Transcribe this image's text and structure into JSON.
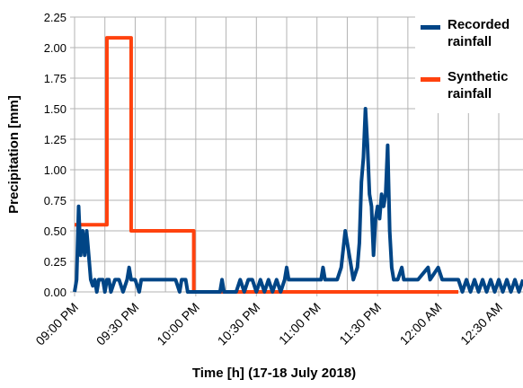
{
  "chart_data": {
    "type": "line",
    "y_label": "Precipitation [mm]",
    "x_label": "Time [h] (17-18 July 2018)",
    "xlim": [
      0,
      222
    ],
    "ylim": [
      0,
      2.25
    ],
    "xticks": [
      {
        "value": 0,
        "label": "09:00 PM"
      },
      {
        "value": 30,
        "label": "09:30 PM"
      },
      {
        "value": 60,
        "label": "10:00 PM"
      },
      {
        "value": 90,
        "label": "10:30 PM"
      },
      {
        "value": 120,
        "label": "11:00 PM"
      },
      {
        "value": 150,
        "label": "11:30 PM"
      },
      {
        "value": 180,
        "label": "12:00 AM"
      },
      {
        "value": 210,
        "label": "12:30 AM"
      }
    ],
    "yticks": [
      {
        "value": 0,
        "label": "0.00"
      },
      {
        "value": 0.25,
        "label": "0.25"
      },
      {
        "value": 0.5,
        "label": "0.50"
      },
      {
        "value": 0.75,
        "label": "0.75"
      },
      {
        "value": 1,
        "label": "1.00"
      },
      {
        "value": 1.25,
        "label": "1.25"
      },
      {
        "value": 1.5,
        "label": "1.50"
      },
      {
        "value": 1.75,
        "label": "1.75"
      },
      {
        "value": 2,
        "label": "2.00"
      },
      {
        "value": 2.25,
        "label": "2.25"
      }
    ],
    "grid": true,
    "series": [
      {
        "name": "Synthetic rainfall",
        "color": "#ff420e",
        "x": [
          0,
          16,
          16,
          28,
          28,
          59,
          59,
          190
        ],
        "values": [
          0.55,
          0.55,
          2.08,
          2.08,
          0.5,
          0.5,
          0,
          0
        ]
      },
      {
        "name": "Recorded rainfall",
        "color": "#004586",
        "x": [
          0,
          1,
          2,
          3,
          4,
          5,
          6,
          7,
          8,
          9,
          10,
          11,
          12,
          14,
          15,
          16,
          17,
          18,
          20,
          22,
          24,
          26,
          27,
          28,
          30,
          32,
          33,
          36,
          38,
          40,
          44,
          48,
          50,
          52,
          53,
          55,
          56,
          58,
          72,
          73,
          74,
          80,
          82,
          84,
          86,
          88,
          90,
          92,
          94,
          96,
          98,
          100,
          102,
          104,
          105,
          106,
          108,
          110,
          114,
          118,
          122,
          123,
          124,
          128,
          130,
          132,
          134,
          136,
          138,
          140,
          141,
          142,
          143,
          144,
          145,
          146,
          147,
          148,
          149,
          150,
          151,
          152,
          153,
          154,
          155,
          156,
          157,
          158,
          160,
          162,
          163,
          170,
          175,
          176,
          180,
          182,
          190,
          192,
          194,
          196,
          198,
          200,
          202,
          204,
          206,
          208,
          210,
          212,
          214,
          216,
          218,
          220,
          222
        ],
        "values": [
          0,
          0.1,
          0.7,
          0.3,
          0.5,
          0.3,
          0.5,
          0.3,
          0.1,
          0.05,
          0.1,
          0,
          0.1,
          0.1,
          0,
          0.1,
          0.1,
          0,
          0.1,
          0.1,
          0,
          0.1,
          0.2,
          0.1,
          0.1,
          0,
          0.1,
          0.1,
          0.1,
          0.1,
          0.1,
          0.1,
          0.1,
          0,
          0.1,
          0.1,
          0,
          0,
          0,
          0.1,
          0,
          0,
          0.1,
          0,
          0.1,
          0.1,
          0,
          0.1,
          0,
          0.1,
          0,
          0.1,
          0,
          0.1,
          0.2,
          0.1,
          0.1,
          0.1,
          0.1,
          0.1,
          0.1,
          0.2,
          0.1,
          0.1,
          0.1,
          0.2,
          0.5,
          0.3,
          0.1,
          0.2,
          0.4,
          0.9,
          1.1,
          1.5,
          1.2,
          0.8,
          0.7,
          0.3,
          0.6,
          0.7,
          0.6,
          0.8,
          0.7,
          0.8,
          1.2,
          0.5,
          0.2,
          0.1,
          0.1,
          0.2,
          0.1,
          0.1,
          0.2,
          0.1,
          0.2,
          0.1,
          0.1,
          0,
          0.1,
          0,
          0.1,
          0,
          0.1,
          0,
          0.1,
          0,
          0.1,
          0,
          0.1,
          0,
          0.1,
          0,
          0.1
        ]
      }
    ],
    "legend_series_order": [
      1,
      0
    ]
  }
}
